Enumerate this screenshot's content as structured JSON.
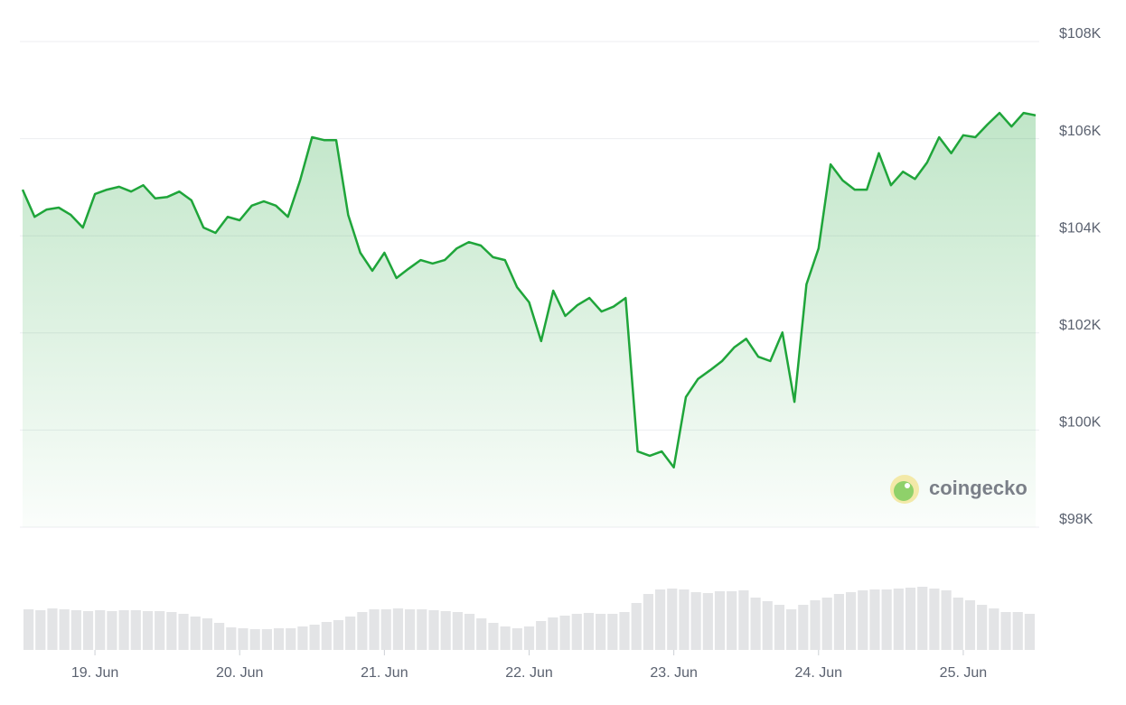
{
  "chart_data": {
    "type": "area",
    "watermark": "coingecko",
    "color": "#1fa53a",
    "volume_color": "#e3e4e6",
    "grid": true,
    "xlim": [
      0,
      168
    ],
    "xticks": [
      {
        "value": 12,
        "label": "19. Jun"
      },
      {
        "value": 36,
        "label": "20. Jun"
      },
      {
        "value": 60,
        "label": "21. Jun"
      },
      {
        "value": 84,
        "label": "22. Jun"
      },
      {
        "value": 108,
        "label": "23. Jun"
      },
      {
        "value": 132,
        "label": "24. Jun"
      },
      {
        "value": 156,
        "label": "25. Jun"
      }
    ],
    "ylim": [
      98000,
      108000
    ],
    "yticks": [
      {
        "value": 98000,
        "label": "$98K"
      },
      {
        "value": 100000,
        "label": "$100K"
      },
      {
        "value": 102000,
        "label": "$102K"
      },
      {
        "value": 104000,
        "label": "$104K"
      },
      {
        "value": 106000,
        "label": "$106K"
      },
      {
        "value": 108000,
        "label": "$108K"
      }
    ],
    "x": [
      0,
      2,
      4,
      6,
      8,
      10,
      12,
      14,
      16,
      18,
      20,
      22,
      24,
      26,
      28,
      30,
      32,
      34,
      36,
      38,
      40,
      42,
      44,
      46,
      48,
      50,
      52,
      54,
      56,
      58,
      60,
      62,
      64,
      66,
      68,
      70,
      72,
      74,
      76,
      78,
      80,
      82,
      84,
      86,
      88,
      90,
      92,
      94,
      96,
      98,
      100,
      102,
      104,
      106,
      108,
      110,
      112,
      114,
      116,
      118,
      120,
      122,
      124,
      126,
      128,
      130,
      132,
      134,
      136,
      138,
      140,
      142,
      144,
      146,
      148,
      150,
      152,
      154,
      156,
      158,
      160,
      162,
      164,
      166,
      168
    ],
    "values": [
      104950,
      104390,
      104540,
      104580,
      104430,
      104170,
      104860,
      104950,
      105010,
      104910,
      105040,
      104770,
      104800,
      104910,
      104730,
      104170,
      104060,
      104390,
      104320,
      104620,
      104710,
      104620,
      104390,
      105130,
      106030,
      105970,
      105970,
      104430,
      103650,
      103280,
      103650,
      103130,
      103320,
      103500,
      103430,
      103500,
      103740,
      103870,
      103800,
      103560,
      103500,
      102940,
      102630,
      101830,
      102870,
      102350,
      102570,
      102720,
      102440,
      102540,
      102720,
      99560,
      99470,
      99560,
      99230,
      100680,
      101050,
      101230,
      101420,
      101700,
      101880,
      101510,
      101420,
      102010,
      100580,
      103000,
      103740,
      105470,
      105140,
      104950,
      104950,
      105700,
      105040,
      105320,
      105170,
      105510,
      106030,
      105700,
      106070,
      106030,
      106290,
      106530,
      106250,
      106530,
      106480
    ],
    "volume": [
      45,
      44,
      46,
      45,
      44,
      43,
      44,
      43,
      44,
      44,
      43,
      43,
      42,
      40,
      37,
      35,
      30,
      25,
      24,
      23,
      23,
      24,
      24,
      26,
      28,
      31,
      33,
      37,
      42,
      45,
      45,
      46,
      45,
      45,
      44,
      43,
      42,
      40,
      35,
      30,
      26,
      24,
      26,
      32,
      36,
      38,
      40,
      41,
      40,
      40,
      42,
      52,
      62,
      67,
      68,
      67,
      64,
      63,
      65,
      65,
      66,
      58,
      54,
      50,
      45,
      50,
      55,
      58,
      62,
      64,
      66,
      67,
      67,
      68,
      69,
      70,
      68,
      66,
      58,
      55,
      50,
      46,
      42,
      42,
      40
    ]
  }
}
